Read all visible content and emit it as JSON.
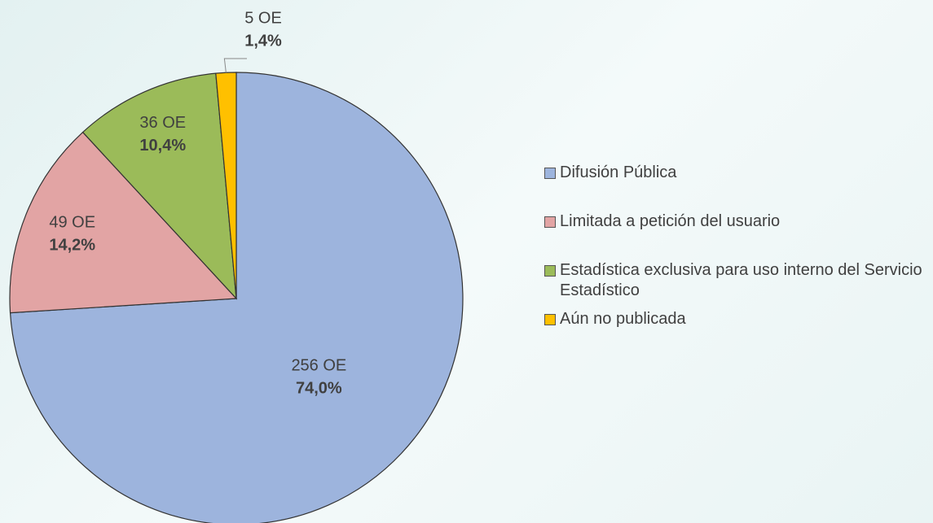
{
  "chart_data": {
    "type": "pie",
    "categories": [
      "Difusión Pública",
      "Limitada a petición del usuario",
      "Estadística exclusiva para uso interno del Servicio Estadístico",
      "Aún no publicada"
    ],
    "values": [
      256,
      49,
      36,
      5
    ],
    "value_labels": [
      "256 OE",
      "49 OE",
      "36 OE",
      "5 OE"
    ],
    "percents": [
      74.0,
      14.2,
      10.4,
      1.4
    ],
    "percent_labels": [
      "74,0%",
      "14,2%",
      "10,4%",
      "1,4%"
    ],
    "colors": [
      "#9db4dd",
      "#e2a4a4",
      "#9bbb59",
      "#ffc000"
    ],
    "legend": "right"
  }
}
